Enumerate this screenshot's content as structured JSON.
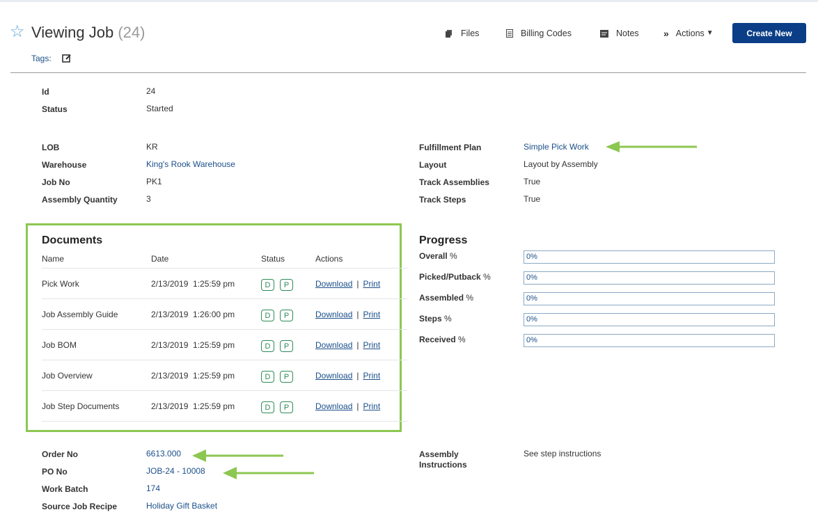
{
  "header": {
    "title": "Viewing Job",
    "count": "(24)",
    "tags_label": "Tags:"
  },
  "toolbar": {
    "files": "Files",
    "billing_codes": "Billing Codes",
    "notes": "Notes",
    "actions": "Actions",
    "create_new": "Create New"
  },
  "details": {
    "id_label": "Id",
    "id_value": "24",
    "status_label": "Status",
    "status_value": "Started",
    "lob_label": "LOB",
    "lob_value": "KR",
    "warehouse_label": "Warehouse",
    "warehouse_value": "King's Rook Warehouse",
    "jobno_label": "Job No",
    "jobno_value": "PK1",
    "assemblyqty_label": "Assembly Quantity",
    "assemblyqty_value": "3",
    "fplan_label": "Fulfillment Plan",
    "fplan_value": "Simple Pick Work",
    "layout_label": "Layout",
    "layout_value": "Layout by Assembly",
    "trackasm_label": "Track Assemblies",
    "trackasm_value": "True",
    "tracksteps_label": "Track Steps",
    "tracksteps_value": "True"
  },
  "documents": {
    "title": "Documents",
    "columns": [
      "Name",
      "Date",
      "Status",
      "Actions"
    ],
    "rows": [
      {
        "name": "Pick Work",
        "date": "2/13/2019  1:25:59 pm",
        "badge1": "D",
        "badge2": "P",
        "download": "Download",
        "sep": "|",
        "print": "Print"
      },
      {
        "name": "Job Assembly Guide",
        "date": "2/13/2019  1:26:00 pm",
        "badge1": "D",
        "badge2": "P",
        "download": "Download",
        "sep": "|",
        "print": "Print"
      },
      {
        "name": "Job BOM",
        "date": "2/13/2019  1:25:59 pm",
        "badge1": "D",
        "badge2": "P",
        "download": "Download",
        "sep": "|",
        "print": "Print"
      },
      {
        "name": "Job Overview",
        "date": "2/13/2019  1:25:59 pm",
        "badge1": "D",
        "badge2": "P",
        "download": "Download",
        "sep": "|",
        "print": "Print"
      },
      {
        "name": "Job Step Documents",
        "date": "2/13/2019  1:25:59 pm",
        "badge1": "D",
        "badge2": "P",
        "download": "Download",
        "sep": "|",
        "print": "Print"
      }
    ]
  },
  "progress": {
    "title": "Progress",
    "items": [
      {
        "label": "Overall",
        "pct": "%",
        "value": "0%"
      },
      {
        "label": "Picked/Putback",
        "pct": "%",
        "value": "0%"
      },
      {
        "label": "Assembled",
        "pct": "%",
        "value": "0%"
      },
      {
        "label": "Steps",
        "pct": "%",
        "value": "0%"
      },
      {
        "label": "Received",
        "pct": "%",
        "value": "0%"
      }
    ]
  },
  "bottom": {
    "orderno_label": "Order No",
    "orderno_value": "6613.000",
    "pono_label": "PO No",
    "pono_value": "JOB-24 - 10008",
    "workbatch_label": "Work Batch",
    "workbatch_value": "174",
    "recipe_label": "Source Job Recipe",
    "recipe_value": "Holiday Gift Basket",
    "asm_instr_label_1": "Assembly",
    "asm_instr_label_2": "Instructions",
    "asm_instr_value": "See step instructions"
  },
  "colors": {
    "accent": "#0b3e87",
    "link": "#1b4f8a",
    "highlight": "#8cc751",
    "badge": "#2e8b57"
  }
}
